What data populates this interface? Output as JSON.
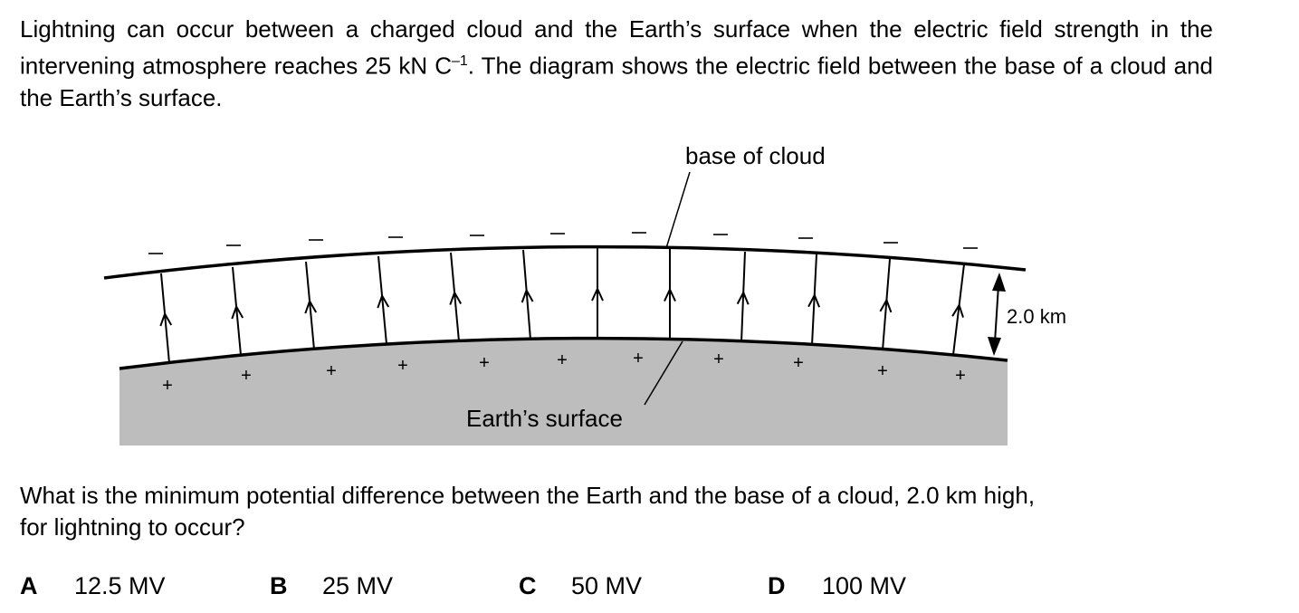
{
  "question": {
    "intro_part1": "Lightning can occur between a charged cloud and the Earth’s surface when the electric field strength in the intervening atmosphere reaches 25 kN C",
    "intro_exponent": "–1",
    "intro_part2": ". The diagram shows the electric field between the base of a cloud and the Earth’s surface.",
    "prompt_line1": "What is the minimum potential difference between the Earth and the base of a cloud, 2.0 km high,",
    "prompt_line2": "for lightning to occur?"
  },
  "diagram": {
    "cloud_label": "base of cloud",
    "surface_label": "Earth’s surface",
    "height_label": "2.0 km",
    "cloud_charge_symbol": "–",
    "surface_charge_symbol": "+",
    "ground_color": "#bdbdbd",
    "line_color": "#000000"
  },
  "options": [
    {
      "letter": "A",
      "value": "12.5 MV"
    },
    {
      "letter": "B",
      "value": "25 MV"
    },
    {
      "letter": "C",
      "value": "50 MV"
    },
    {
      "letter": "D",
      "value": "100 MV"
    }
  ]
}
